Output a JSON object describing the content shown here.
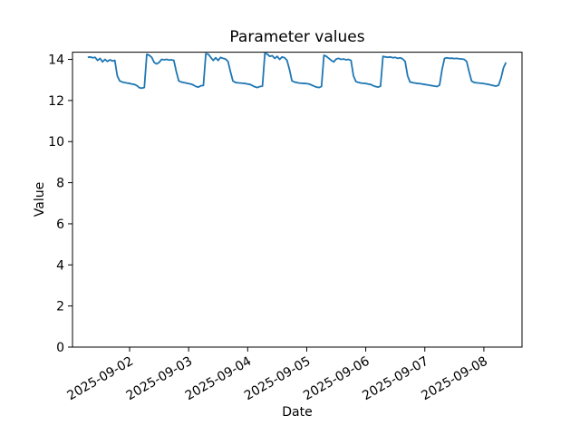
{
  "figure": {
    "background": "#ffffff",
    "axes_background": "#ffffff",
    "spine_color": "#000000",
    "tick_color": "#000000"
  },
  "chart_data": {
    "type": "line",
    "title": "Parameter values",
    "xlabel": "Date",
    "ylabel": "Value",
    "line_color": "#1f77b4",
    "grid": false,
    "legend": false,
    "ylim": [
      0,
      14.35
    ],
    "xlim_hours": [
      0.8,
      183.5
    ],
    "y_ticks": [
      0,
      2,
      4,
      6,
      8,
      10,
      12,
      14
    ],
    "x_ticks": [
      {
        "label": "2025-09-02",
        "hour": 24
      },
      {
        "label": "2025-09-03",
        "hour": 48
      },
      {
        "label": "2025-09-04",
        "hour": 72
      },
      {
        "label": "2025-09-05",
        "hour": 96
      },
      {
        "label": "2025-09-06",
        "hour": 120
      },
      {
        "label": "2025-09-07",
        "hour": 144
      },
      {
        "label": "2025-09-08",
        "hour": 168
      }
    ],
    "x_tick_rotation_deg": 30,
    "series_start": "2025-09-01T07:00",
    "interval_hours": 1,
    "values": [
      14.1,
      14.12,
      14.08,
      14.1,
      13.95,
      14.05,
      13.88,
      14.0,
      13.9,
      13.98,
      13.92,
      13.95,
      13.2,
      12.95,
      12.9,
      12.87,
      12.85,
      12.83,
      12.8,
      12.78,
      12.72,
      12.62,
      12.6,
      12.63,
      14.25,
      14.2,
      14.1,
      13.85,
      13.78,
      13.85,
      14.0,
      13.98,
      14.0,
      13.97,
      13.98,
      13.95,
      13.4,
      12.95,
      12.9,
      12.87,
      12.85,
      12.82,
      12.8,
      12.75,
      12.68,
      12.65,
      12.72,
      12.73,
      14.28,
      14.25,
      14.1,
      13.95,
      14.08,
      13.95,
      14.1,
      14.05,
      14.02,
      13.9,
      13.4,
      12.95,
      12.88,
      12.86,
      12.85,
      12.84,
      12.83,
      12.8,
      12.78,
      12.72,
      12.66,
      12.63,
      12.68,
      12.7,
      14.3,
      14.25,
      14.15,
      14.18,
      14.05,
      14.15,
      14.0,
      14.12,
      14.08,
      13.95,
      13.5,
      12.95,
      12.9,
      12.87,
      12.85,
      12.84,
      12.83,
      12.82,
      12.8,
      12.75,
      12.7,
      12.65,
      12.63,
      12.68,
      14.2,
      14.15,
      14.05,
      13.95,
      13.88,
      14.02,
      14.05,
      14.0,
      14.02,
      13.98,
      14.0,
      13.95,
      13.2,
      12.92,
      12.88,
      12.85,
      12.84,
      12.83,
      12.8,
      12.78,
      12.72,
      12.68,
      12.65,
      12.7,
      14.15,
      14.12,
      14.1,
      14.12,
      14.08,
      14.1,
      14.05,
      14.08,
      14.02,
      13.9,
      13.2,
      12.9,
      12.87,
      12.85,
      12.83,
      12.82,
      12.8,
      12.78,
      12.76,
      12.74,
      12.72,
      12.7,
      12.68,
      12.75,
      13.5,
      14.05,
      14.08,
      14.05,
      14.06,
      14.04,
      14.05,
      14.03,
      14.02,
      14.0,
      13.9,
      13.4,
      12.95,
      12.88,
      12.86,
      12.85,
      12.84,
      12.82,
      12.8,
      12.78,
      12.75,
      12.72,
      12.7,
      12.75,
      13.1,
      13.6,
      13.85
    ]
  }
}
